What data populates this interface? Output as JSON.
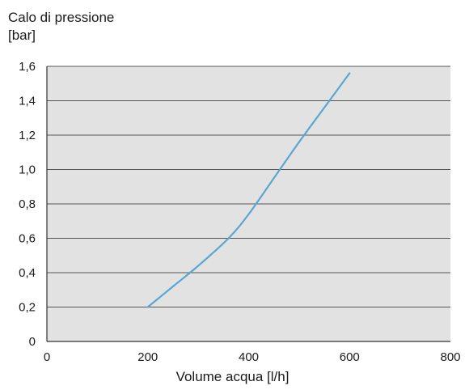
{
  "chart_data": {
    "type": "line",
    "ylabel_line1": "Calo di pressione",
    "ylabel_line2": "[bar]",
    "xlabel": "Volume acqua [l/h]",
    "xlim": [
      0,
      800
    ],
    "ylim": [
      0,
      1.6
    ],
    "xticks": [
      "0",
      "200",
      "400",
      "600",
      "800"
    ],
    "yticks": [
      "0",
      "0,2",
      "0,4",
      "0,6",
      "0,8",
      "1,0",
      "1,2",
      "1,4",
      "1,6"
    ],
    "grid": true,
    "plot_background": "#e2e2e2",
    "line_color": "#5aa6d2",
    "series": [
      {
        "x": [
          200,
          250,
          300,
          360,
          400,
          450,
          500,
          550,
          600
        ],
        "y": [
          0.2,
          0.32,
          0.44,
          0.6,
          0.74,
          0.95,
          1.16,
          1.36,
          1.56
        ]
      }
    ]
  }
}
